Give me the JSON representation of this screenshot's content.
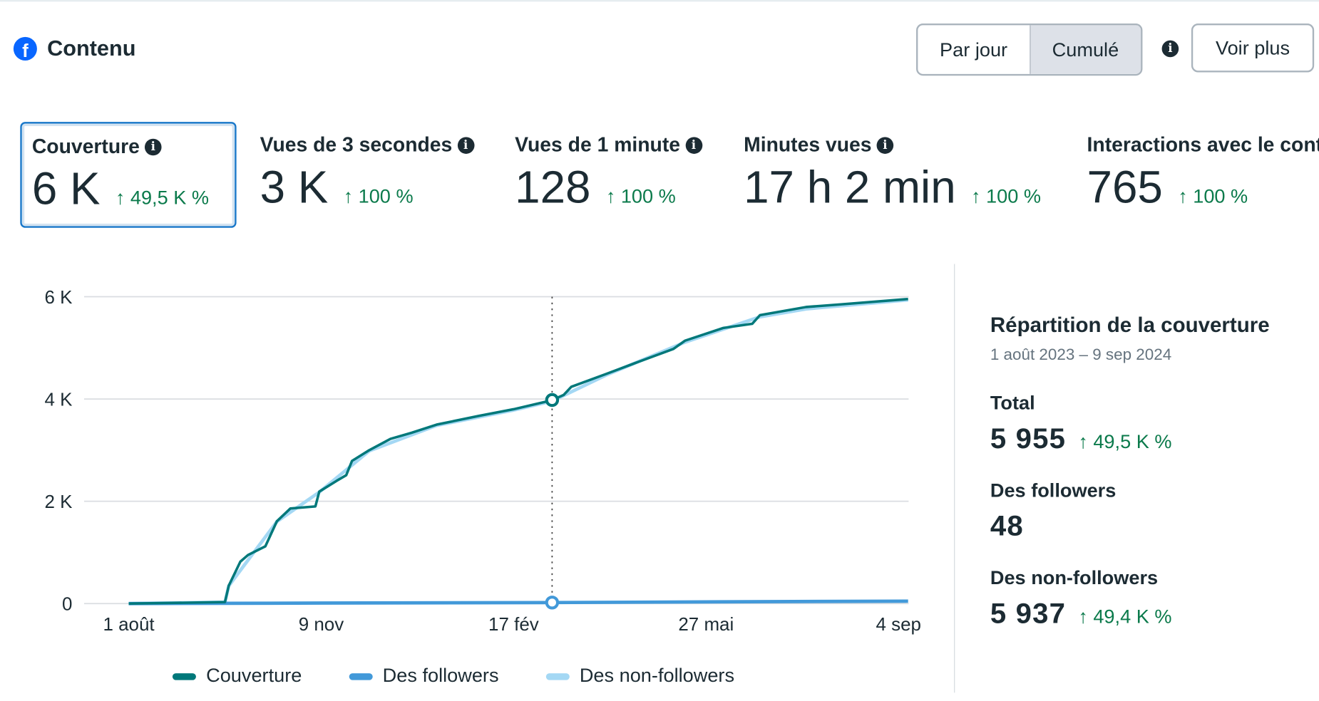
{
  "header": {
    "title": "Contenu",
    "icon": "facebook-icon",
    "toggle": [
      "Par jour",
      "Cumulé"
    ],
    "toggle_selected": "Cumulé",
    "more_label": "Voir plus"
  },
  "metrics": [
    {
      "label": "Couverture",
      "value": "6 K",
      "change": "↑ 49,5 K %",
      "selected": true
    },
    {
      "label": "Vues de 3 secondes",
      "value": "3 K",
      "change": "↑ 100 %"
    },
    {
      "label": "Vues de 1 minute",
      "value": "128",
      "change": "↑ 100 %"
    },
    {
      "label": "Minutes vues",
      "value": "17 h 2 min",
      "change": "↑ 100 %"
    },
    {
      "label": "Interactions avec le contenu",
      "value": "765",
      "change": "↑ 100 %"
    }
  ],
  "breakdown": {
    "title": "Répartition de la couverture",
    "range": "1 août 2023 – 9 sep 2024",
    "total_label": "Total",
    "total": "5 955",
    "total_change": "↑ 49,5 K %",
    "followers_label": "Des followers",
    "followers": "48",
    "nonfollowers_label": "Des non-followers",
    "nonfollowers": "5 937",
    "nonfollowers_change": "↑ 49,4 K %"
  },
  "colors": {
    "couverture": "#00787a",
    "followers": "#4299d9",
    "nonfollowers": "#a4d8f4",
    "positive": "#0b7a4b",
    "accent": "#1877c9"
  },
  "chart_data": {
    "type": "line",
    "cumulative": true,
    "x_range": [
      "2023-08-01",
      "2024-09-09"
    ],
    "ylim": [
      0,
      6000
    ],
    "y_ticks": [
      {
        "v": 0,
        "label": "0"
      },
      {
        "v": 2000,
        "label": "2 K"
      },
      {
        "v": 4000,
        "label": "4 K"
      },
      {
        "v": 6000,
        "label": "6 K"
      }
    ],
    "x_ticks": [
      {
        "date": "2023-08-01",
        "label": "1 août"
      },
      {
        "date": "2023-11-09",
        "label": "9 nov"
      },
      {
        "date": "2024-02-17",
        "label": "17 fév"
      },
      {
        "date": "2024-05-27",
        "label": "27 mai"
      },
      {
        "date": "2024-09-04",
        "label": "4 sep"
      }
    ],
    "grid": true,
    "legend": "bottom",
    "hover_date": "2024-03-08",
    "series": [
      {
        "name": "Couverture",
        "color": "#00787a",
        "points": [
          [
            "2023-08-01",
            0
          ],
          [
            "2023-09-20",
            30
          ],
          [
            "2023-09-22",
            350
          ],
          [
            "2023-09-28",
            820
          ],
          [
            "2023-10-02",
            950
          ],
          [
            "2023-10-11",
            1120
          ],
          [
            "2023-10-17",
            1610
          ],
          [
            "2023-10-24",
            1860
          ],
          [
            "2023-11-06",
            1900
          ],
          [
            "2023-11-08",
            2190
          ],
          [
            "2023-11-17",
            2400
          ],
          [
            "2023-11-22",
            2510
          ],
          [
            "2023-11-25",
            2790
          ],
          [
            "2023-12-04",
            3000
          ],
          [
            "2023-12-15",
            3220
          ],
          [
            "2023-12-26",
            3340
          ],
          [
            "2024-01-08",
            3500
          ],
          [
            "2024-01-30",
            3670
          ],
          [
            "2024-02-17",
            3800
          ],
          [
            "2024-03-05",
            3950
          ],
          [
            "2024-03-08",
            3980
          ],
          [
            "2024-03-14",
            4080
          ],
          [
            "2024-03-18",
            4240
          ],
          [
            "2024-04-05",
            4490
          ],
          [
            "2024-04-22",
            4730
          ],
          [
            "2024-05-10",
            4980
          ],
          [
            "2024-05-16",
            5140
          ],
          [
            "2024-06-05",
            5390
          ],
          [
            "2024-06-20",
            5470
          ],
          [
            "2024-06-24",
            5640
          ],
          [
            "2024-07-18",
            5800
          ],
          [
            "2024-08-05",
            5850
          ],
          [
            "2024-09-09",
            5955
          ]
        ]
      },
      {
        "name": "Des followers",
        "color": "#4299d9",
        "points": [
          [
            "2023-08-01",
            0
          ],
          [
            "2023-11-09",
            10
          ],
          [
            "2024-03-08",
            20
          ],
          [
            "2024-06-05",
            35
          ],
          [
            "2024-09-09",
            48
          ]
        ]
      },
      {
        "name": "Des non-followers",
        "color": "#a4d8f4",
        "points": [
          [
            "2023-08-01",
            0
          ],
          [
            "2023-09-20",
            28
          ],
          [
            "2023-09-22",
            346
          ],
          [
            "2023-10-17",
            1603
          ],
          [
            "2023-11-08",
            2180
          ],
          [
            "2023-12-04",
            2986
          ],
          [
            "2024-01-08",
            3484
          ],
          [
            "2024-02-17",
            3782
          ],
          [
            "2024-03-08",
            3960
          ],
          [
            "2024-04-05",
            4466
          ],
          [
            "2024-05-16",
            5110
          ],
          [
            "2024-06-24",
            5607
          ],
          [
            "2024-07-18",
            5762
          ],
          [
            "2024-09-09",
            5937
          ]
        ]
      }
    ]
  }
}
